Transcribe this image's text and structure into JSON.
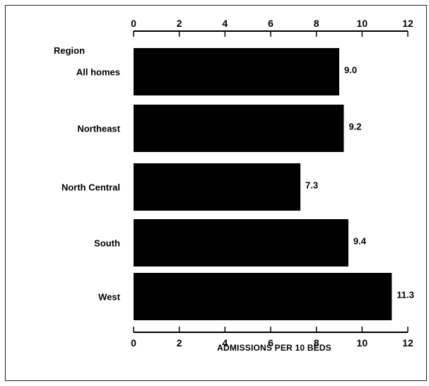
{
  "chart_data": {
    "type": "bar",
    "orientation": "horizontal",
    "category_axis_label": "Region",
    "categories": [
      "All homes",
      "Northeast",
      "North Central",
      "South",
      "West"
    ],
    "values": [
      9.0,
      9.2,
      7.3,
      9.4,
      11.3
    ],
    "value_labels": [
      "9.0",
      "9.2",
      "7.3",
      "9.4",
      "11.3"
    ],
    "xlabel": "ADMISSIONS PER 10 BEDS",
    "xlim": [
      0,
      12
    ],
    "xticks": [
      0,
      2,
      4,
      6,
      8,
      10,
      12
    ],
    "tick_labels": [
      "0",
      "2",
      "4",
      "6",
      "8",
      "10",
      "12"
    ],
    "axis_positions": [
      "top",
      "bottom"
    ],
    "grid": false,
    "bar_color": "#000000"
  }
}
